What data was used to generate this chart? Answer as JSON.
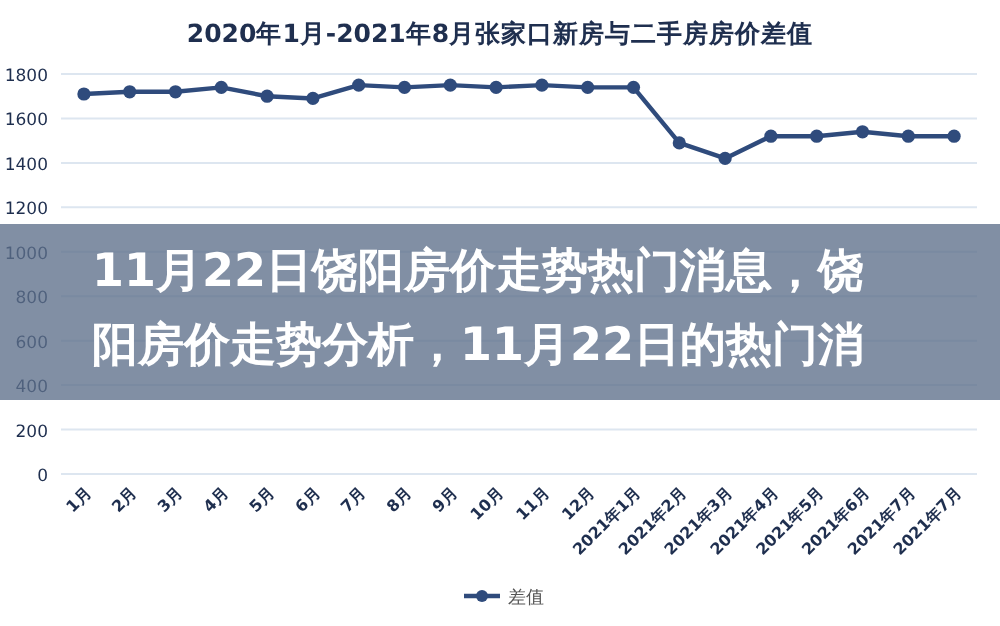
{
  "chart_data": {
    "type": "line",
    "title": "2020年1月-2021年8月张家口新房与二手房房价差值",
    "categories": [
      "1月",
      "2月",
      "3月",
      "4月",
      "5月",
      "6月",
      "7月",
      "8月",
      "9月",
      "10月",
      "11月",
      "12月",
      "2021年1月",
      "2021年2月",
      "2021年3月",
      "2021年4月",
      "2021年5月",
      "2021年6月",
      "2021年7月",
      "2021年7月"
    ],
    "series": [
      {
        "name": "差值",
        "color": "#2f4b7c",
        "values": [
          1710,
          1720,
          1720,
          1740,
          1700,
          1690,
          1750,
          1740,
          1750,
          1740,
          1750,
          1740,
          1740,
          1490,
          1420,
          1520,
          1520,
          1540,
          1520,
          1520
        ]
      }
    ],
    "ylim": [
      0,
      1800
    ],
    "yticks": [
      0,
      200,
      400,
      600,
      800,
      1000,
      1200,
      1400,
      1600,
      1800
    ],
    "grid": "y",
    "legend": "bottom",
    "marker": "circle",
    "line_style": "solid",
    "annotations": [
      "11月22日饶阳房价走势热门消息，饶阳房价走势分析，11月22日的热门消"
    ]
  }
}
